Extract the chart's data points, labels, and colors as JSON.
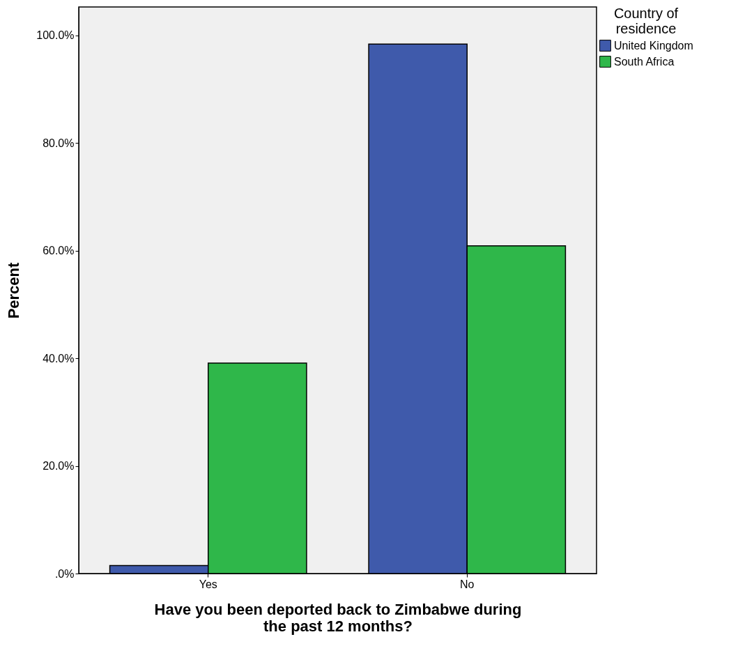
{
  "chart_data": {
    "type": "bar",
    "xlabel": "Have you been deported back to Zimbabwe during the past 12 months?",
    "ylabel": "Percent",
    "legend_title": "Country of residence",
    "legend": "top right",
    "grid": false,
    "categories": [
      "Yes",
      "No"
    ],
    "series": [
      {
        "name": "United Kingdom",
        "color": "#3f5aab",
        "values": [
          1.5,
          98.4
        ]
      },
      {
        "name": "South Africa",
        "color": "#2fb74a",
        "values": [
          39.1,
          60.9
        ]
      }
    ],
    "ylim": [
      0,
      105.3
    ],
    "yticks": [
      {
        "value": 0,
        "label": ".0%"
      },
      {
        "value": 20,
        "label": "20.0%"
      },
      {
        "value": 40,
        "label": "40.0%"
      },
      {
        "value": 60,
        "label": "60.0%"
      },
      {
        "value": 80,
        "label": "80.0%"
      },
      {
        "value": 100,
        "label": "100.0%"
      }
    ]
  }
}
